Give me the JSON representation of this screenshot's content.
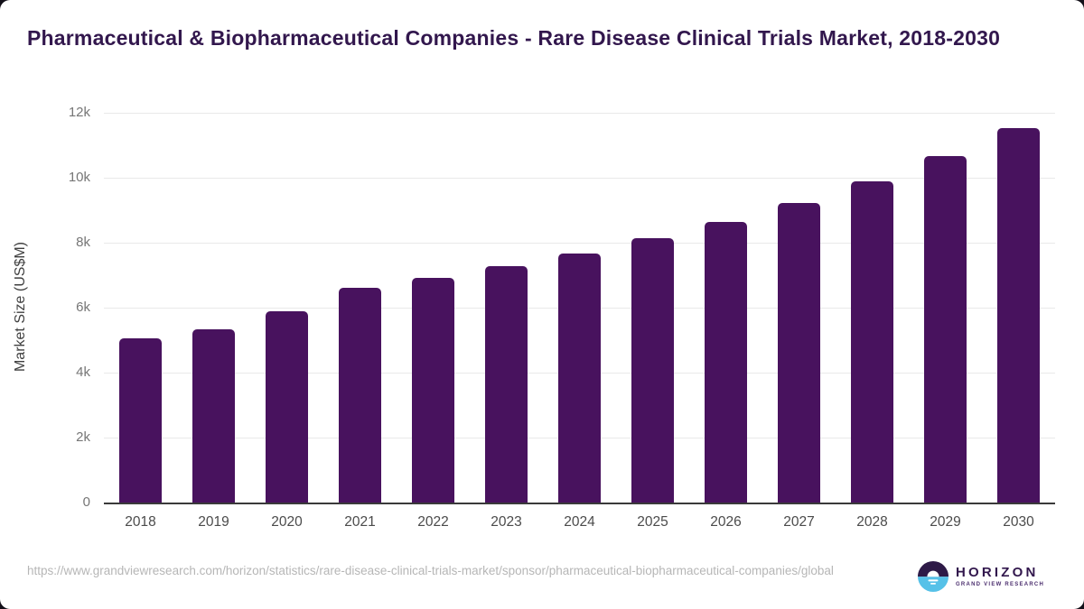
{
  "header": {
    "title": "Pharmaceutical & Biopharmaceutical Companies - Rare Disease Clinical Trials Market, 2018-2030"
  },
  "chart_data": {
    "type": "bar",
    "categories": [
      "2018",
      "2019",
      "2020",
      "2021",
      "2022",
      "2023",
      "2024",
      "2025",
      "2026",
      "2027",
      "2028",
      "2029",
      "2030"
    ],
    "values": [
      5050,
      5330,
      5890,
      6610,
      6930,
      7280,
      7670,
      8130,
      8650,
      9230,
      9900,
      10670,
      11530
    ],
    "title": "Pharmaceutical & Biopharmaceutical Companies - Rare Disease Clinical Trials Market, 2018-2030",
    "xlabel": "",
    "ylabel": "Market Size (US$M)",
    "ylim": [
      0,
      12000
    ],
    "yticks": [
      0,
      2000,
      4000,
      6000,
      8000,
      10000,
      12000
    ],
    "ytick_labels": [
      "0",
      "2k",
      "4k",
      "6k",
      "8k",
      "10k",
      "12k"
    ],
    "grid": true,
    "legend": false,
    "bar_color": "#48125e"
  },
  "footer": {
    "source_url": "https://www.grandviewresearch.com/horizon/statistics/rare-disease-clinical-trials-market/sponsor/pharmaceutical-biopharmaceutical-companies/global",
    "logo": {
      "name": "HORIZON",
      "subtitle": "GRAND VIEW RESEARCH",
      "icon_top_color": "#2e1a47",
      "icon_bottom_color": "#56c1e8"
    }
  },
  "colors": {
    "bar": "#48125e",
    "title_text": "#32174d",
    "axis_line": "#3a3a3a",
    "gridline": "#e9e9e9",
    "y_tick_text": "#767676",
    "x_tick_text": "#4b4b4b",
    "source_text": "#b6b6b6",
    "page_background": "#131019",
    "card_background": "#ffffff"
  }
}
